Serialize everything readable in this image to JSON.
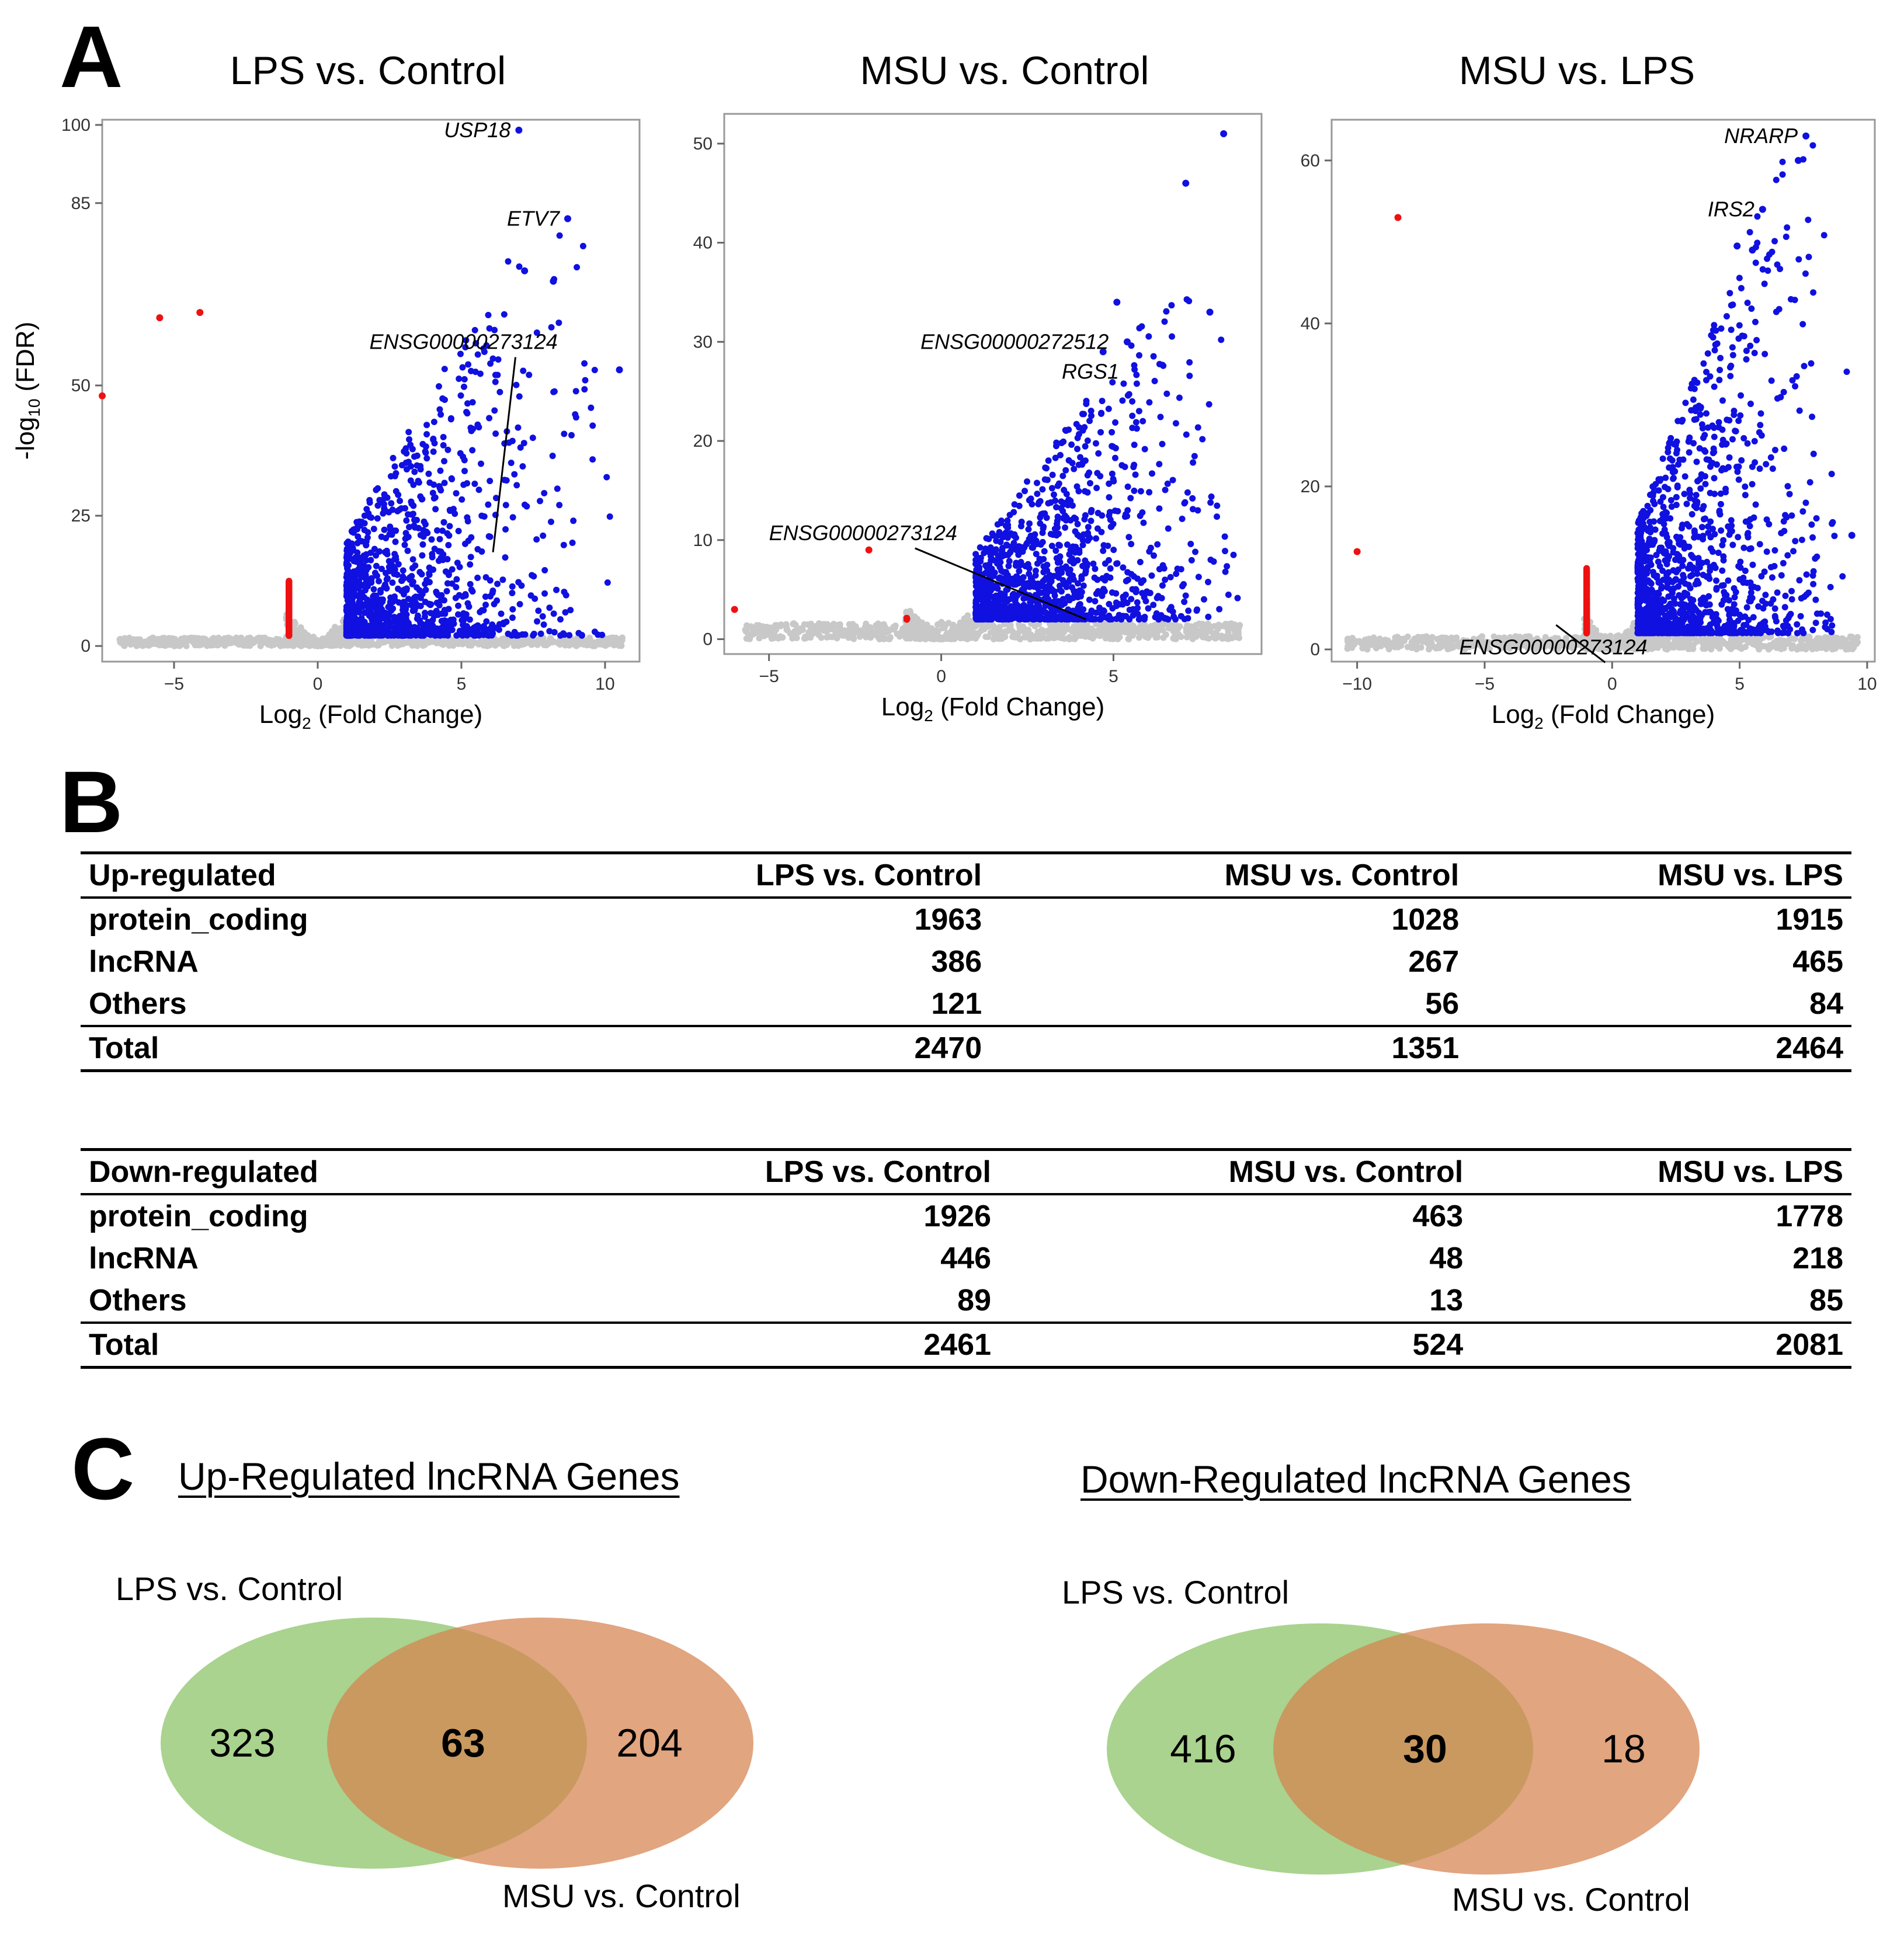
{
  "panels": {
    "a": "A",
    "b": "B",
    "c": "C"
  },
  "colors": {
    "up": "#1010e0",
    "down": "#ee1111",
    "ns": "#c8c8c8",
    "venn_green": "#8cc468",
    "venn_orange": "#d8885a"
  },
  "chart_data": [
    {
      "type": "scatter",
      "title": "LPS vs. Control",
      "xlabel": "Log2 (Fold Change)",
      "ylabel": "-log10 (FDR)",
      "xlim": [
        -7.5,
        11.2
      ],
      "ylim": [
        -3,
        101
      ],
      "xticks": [
        -5,
        0,
        5,
        10
      ],
      "yticks": [
        0,
        25,
        50,
        85,
        100
      ],
      "ytick_labels": [
        "0",
        "25",
        "50",
        "85",
        "100"
      ],
      "down_cloud": {
        "x_range": [
          -7.2,
          -1.0
        ],
        "y_max": 50
      },
      "up_cloud": {
        "x_range": [
          1.0,
          10.4
        ],
        "y_max": 82
      },
      "labels": [
        {
          "text": "USP18",
          "x": 7.0,
          "y": 99
        },
        {
          "text": "ETV7",
          "x": 8.7,
          "y": 82
        },
        {
          "text": "ENSG00000273124",
          "x": 6.1,
          "y": 18,
          "label_x": 1.8,
          "label_y": 57
        }
      ],
      "highlight_points": [
        {
          "x": 7.0,
          "y": 99
        },
        {
          "x": 8.7,
          "y": 82
        },
        {
          "x": 7.2,
          "y": 72
        },
        {
          "x": 8.2,
          "y": 70
        },
        {
          "x": 10.5,
          "y": 53
        },
        {
          "x": -7.5,
          "y": 48
        },
        {
          "x": -4.1,
          "y": 64
        },
        {
          "x": -5.5,
          "y": 63
        }
      ]
    },
    {
      "type": "scatter",
      "title": "MSU vs. Control",
      "xlabel": "Log2 (Fold Change)",
      "ylabel": "",
      "xlim": [
        -6.3,
        9.3
      ],
      "ylim": [
        -1.5,
        53
      ],
      "xticks": [
        -5,
        0,
        5
      ],
      "yticks": [
        0,
        10,
        20,
        30,
        40,
        50
      ],
      "ytick_labels": [
        "0",
        "10",
        "20",
        "30",
        "40",
        "50"
      ],
      "down_cloud": {
        "x_range": [
          -6.0,
          -1.0
        ],
        "y_max": 8.5
      },
      "up_cloud": {
        "x_range": [
          1.0,
          9.0
        ],
        "y_max": 35
      },
      "labels": [
        {
          "text": "ENSG00000272512",
          "x": 5.1,
          "y": 30
        },
        {
          "text": "RGS1",
          "x": 5.4,
          "y": 27
        },
        {
          "text": "ENSG00000273124",
          "x": 4.2,
          "y": 2,
          "label_x": -5.0,
          "label_y": 10
        }
      ],
      "highlight_points": [
        {
          "x": 8.2,
          "y": 51
        },
        {
          "x": 7.1,
          "y": 46
        },
        {
          "x": 5.1,
          "y": 34
        },
        {
          "x": 4.7,
          "y": 29
        },
        {
          "x": 5.4,
          "y": 30
        },
        {
          "x": 7.8,
          "y": 33
        },
        {
          "x": -6.0,
          "y": 3
        },
        {
          "x": -2.1,
          "y": 9
        }
      ]
    },
    {
      "type": "scatter",
      "title": "MSU vs. LPS",
      "xlabel": "Log2 (Fold Change)",
      "ylabel": "",
      "xlim": [
        -11.0,
        10.3
      ],
      "ylim": [
        -1.5,
        65
      ],
      "xticks": [
        -10,
        -5,
        0,
        5,
        10
      ],
      "yticks": [
        0,
        20,
        40,
        60
      ],
      "ytick_labels": [
        "0",
        "20",
        "40",
        "60"
      ],
      "down_cloud": {
        "x_range": [
          -10.2,
          -1.0
        ],
        "y_max": 40
      },
      "up_cloud": {
        "x_range": [
          1.0,
          9.4
        ],
        "y_max": 62
      },
      "labels": [
        {
          "text": "NRARP",
          "x": 7.6,
          "y": 63
        },
        {
          "text": "IRS2",
          "x": 5.9,
          "y": 54
        },
        {
          "text": "ENSG00000273124",
          "x": -2.2,
          "y": 3,
          "label_x": -6.0,
          "label_y": -0.6
        }
      ],
      "highlight_points": [
        {
          "x": 7.6,
          "y": 63
        },
        {
          "x": 7.3,
          "y": 60
        },
        {
          "x": 5.9,
          "y": 54
        },
        {
          "x": -8.4,
          "y": 53
        },
        {
          "x": 9.4,
          "y": 14
        },
        {
          "x": -10.0,
          "y": 12
        },
        {
          "x": 5.5,
          "y": 49
        },
        {
          "x": 4.9,
          "y": 49.5
        }
      ]
    }
  ],
  "tables": {
    "up": {
      "header": [
        "Up-regulated",
        "LPS vs. Control",
        "MSU vs. Control",
        "MSU vs. LPS"
      ],
      "rows": [
        [
          "protein_coding",
          "1963",
          "1028",
          "1915"
        ],
        [
          "lncRNA",
          "386",
          "267",
          "465"
        ],
        [
          "Others",
          "121",
          "56",
          "84"
        ]
      ],
      "total": [
        "Total",
        "2470",
        "1351",
        "2464"
      ]
    },
    "down": {
      "header": [
        "Down-regulated",
        "LPS vs. Control",
        "MSU vs. Control",
        "MSU vs. LPS"
      ],
      "rows": [
        [
          "protein_coding",
          "1926",
          "463",
          "1778"
        ],
        [
          "lncRNA",
          "446",
          "48",
          "218"
        ],
        [
          "Others",
          "89",
          "13",
          "85"
        ]
      ],
      "total": [
        "Total",
        "2461",
        "524",
        "2081"
      ]
    }
  },
  "venn": {
    "up": {
      "title": "Up-Regulated lncRNA Genes",
      "set_a": "LPS vs. Control",
      "set_b": "MSU vs. Control",
      "only_a": "323",
      "both": "63",
      "only_b": "204"
    },
    "down": {
      "title": "Down-Regulated lncRNA Genes",
      "set_a": "LPS vs. Control",
      "set_b": "MSU vs. Control",
      "only_a": "416",
      "both": "30",
      "only_b": "18"
    }
  }
}
